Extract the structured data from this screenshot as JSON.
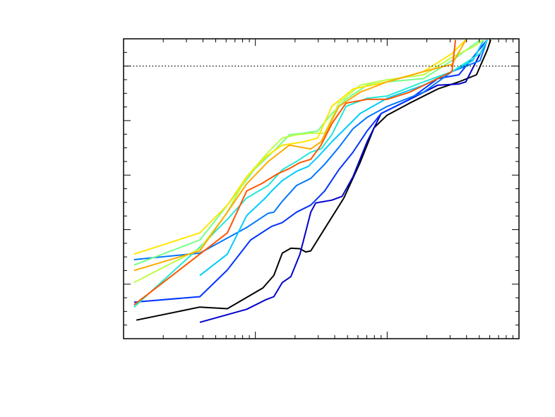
{
  "chart_data": {
    "type": "line",
    "xscale": "log",
    "xlim": [
      1,
      1000
    ],
    "ylim": [
      0,
      5.5
    ],
    "xticks": [
      1,
      10,
      100,
      1000
    ],
    "yticks": [
      0,
      1,
      2,
      3,
      4,
      5
    ],
    "hline": 5,
    "series": [
      {
        "color": "#000000",
        "x": [
          1.25,
          3.79,
          6.13,
          11.4,
          13.8,
          16,
          18.6,
          21.8,
          24.1,
          26.3,
          34.4,
          46.9,
          62.3,
          79.6,
          100,
          148,
          242,
          350,
          476,
          573,
          610
        ],
        "values": [
          0.34,
          0.58,
          0.55,
          0.93,
          1.16,
          1.57,
          1.66,
          1.65,
          1.59,
          1.61,
          2.06,
          2.58,
          3.23,
          3.87,
          4.1,
          4.32,
          4.58,
          4.71,
          4.84,
          5.29,
          5.48
        ]
      },
      {
        "color": "#0000cc",
        "x": [
          3.79,
          8.6,
          11.9,
          13.8,
          16,
          18.6,
          21.8,
          26.3,
          28.7,
          38,
          45.5,
          55,
          70.4,
          90,
          148,
          242,
          350,
          395,
          573
        ],
        "values": [
          0.3,
          0.54,
          0.71,
          0.77,
          1.03,
          1.14,
          1.55,
          2.32,
          2.49,
          2.54,
          2.61,
          2.97,
          3.61,
          4.13,
          4.39,
          4.65,
          4.67,
          4.71,
          5.48
        ]
      },
      {
        "color": "#0033ff",
        "x": [
          1.2,
          3.79,
          6.13,
          9.2,
          13.3,
          16,
          20.5,
          26.3,
          33.6,
          43,
          55,
          70.4,
          90,
          148,
          242,
          350,
          573
        ],
        "values": [
          0.67,
          0.77,
          1.26,
          1.81,
          2.06,
          2.13,
          2.32,
          2.45,
          2.71,
          3.1,
          3.42,
          3.81,
          4.13,
          4.39,
          4.77,
          4.84,
          5.48
        ]
      },
      {
        "color": "#0077ff",
        "x": [
          1.2,
          3.79,
          8.6,
          12.5,
          13.8,
          16,
          20.5,
          26.3,
          33.6,
          43,
          55,
          70.4,
          100,
          189,
          310,
          506,
          573
        ],
        "values": [
          1.45,
          1.57,
          2.04,
          2.3,
          2.32,
          2.52,
          2.81,
          2.94,
          3.2,
          3.51,
          3.85,
          4.06,
          4.26,
          4.52,
          4.9,
          5.1,
          5.48
        ]
      },
      {
        "color": "#00ccff",
        "x": [
          3.79,
          6.13,
          8.6,
          11.9,
          13.3,
          16,
          20.5,
          25.2,
          29.7,
          38,
          48.7,
          62.3,
          100,
          189,
          310,
          447,
          540
        ],
        "values": [
          1.16,
          1.55,
          2.26,
          2.58,
          2.71,
          2.9,
          3.07,
          3.16,
          3.33,
          3.61,
          3.87,
          4.13,
          4.41,
          4.65,
          4.9,
          5.1,
          5.48
        ]
      },
      {
        "color": "#22e8d8",
        "x": [
          1.2,
          3.79,
          6.13,
          8.6,
          12.5,
          16,
          20.5,
          26.3,
          31.5,
          38,
          48.7,
          70.4,
          100,
          189,
          310,
          506,
          573
        ],
        "values": [
          0.58,
          1.68,
          2.19,
          2.58,
          2.81,
          3.1,
          3.25,
          3.42,
          3.48,
          3.74,
          4.26,
          4.41,
          4.45,
          4.71,
          4.9,
          5.23,
          5.48
        ]
      },
      {
        "color": "#77ff88",
        "x": [
          1.2,
          3.79,
          6.13,
          9.8,
          14.3,
          18.1,
          23.2,
          29.7,
          38,
          48.7,
          70.4,
          100,
          189,
          310,
          506
        ],
        "values": [
          1.35,
          1.81,
          2.45,
          3.1,
          3.48,
          3.74,
          3.77,
          3.81,
          4.13,
          4.39,
          4.65,
          4.71,
          4.77,
          5.1,
          5.48
        ]
      },
      {
        "color": "#bbff44",
        "x": [
          1.2,
          3.79,
          6.13,
          8.6,
          12.5,
          16,
          20.5,
          26.3,
          33.6,
          43,
          62.3,
          100,
          189,
          310,
          447,
          540
        ],
        "values": [
          1.03,
          1.65,
          2.32,
          2.97,
          3.42,
          3.68,
          3.74,
          3.77,
          3.77,
          4.32,
          4.65,
          4.75,
          4.84,
          5.16,
          5.35,
          5.48
        ]
      },
      {
        "color": "#ffe600",
        "x": [
          1.2,
          3.79,
          6.13,
          8.6,
          11.9,
          16,
          23.2,
          29.7,
          38,
          55,
          100,
          189,
          310,
          395
        ],
        "values": [
          1.55,
          1.94,
          2.45,
          2.97,
          3.33,
          3.55,
          3.61,
          3.68,
          4.26,
          4.58,
          4.71,
          4.9,
          5.23,
          5.48
        ]
      },
      {
        "color": "#ffaa00",
        "x": [
          1.2,
          3.79,
          6.13,
          8.6,
          12.5,
          18.1,
          26.3,
          31.5,
          43,
          62.3,
          100,
          189,
          310,
          395
        ],
        "values": [
          1.25,
          1.61,
          2.32,
          2.84,
          3.25,
          3.55,
          3.48,
          3.61,
          4.26,
          4.52,
          4.71,
          4.9,
          5.03,
          5.48
        ]
      },
      {
        "color": "#ff5500",
        "x": [
          1.2,
          3.79,
          6.13,
          8.6,
          11.1,
          14.9,
          18.1,
          21.8,
          26.3,
          31.5,
          38,
          48.7,
          70.4,
          100,
          148,
          242,
          310,
          330
        ],
        "values": [
          0.62,
          1.55,
          1.94,
          2.71,
          2.84,
          3.03,
          3.12,
          3.23,
          3.29,
          3.55,
          3.94,
          4.32,
          4.39,
          4.39,
          4.52,
          4.77,
          4.9,
          5.48
        ]
      }
    ]
  }
}
